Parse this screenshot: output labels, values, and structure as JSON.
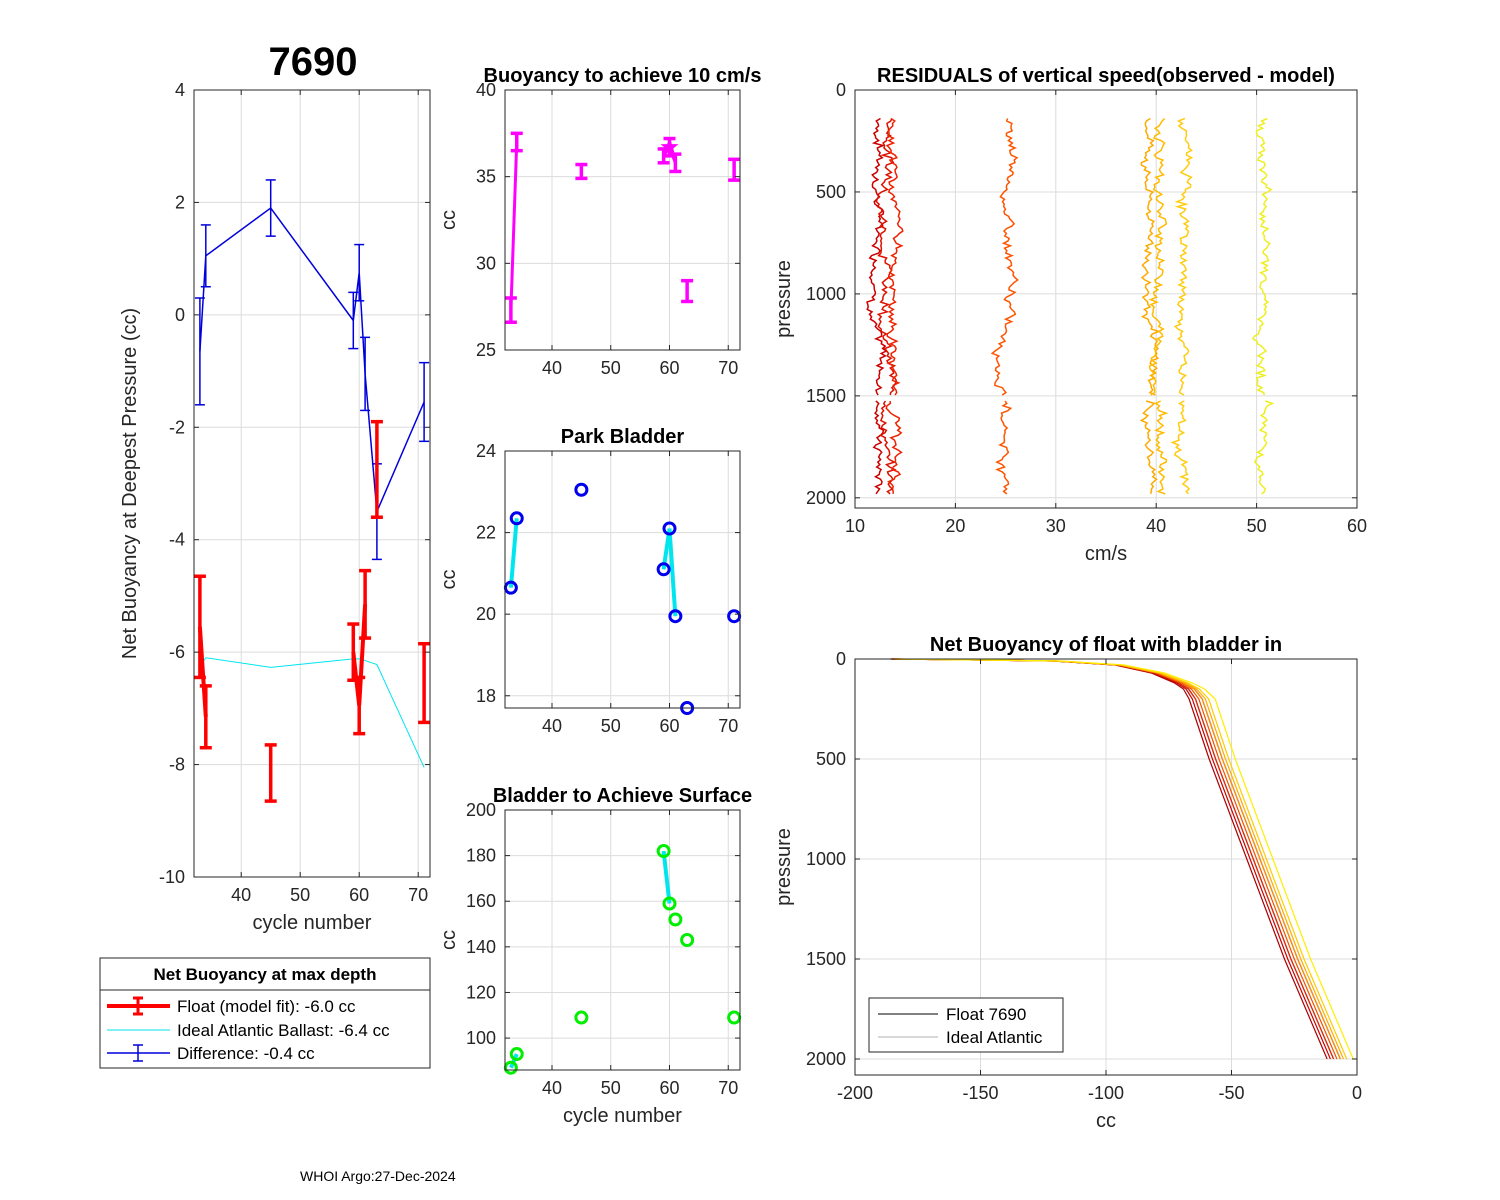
{
  "figure_title": "7690",
  "footer": "WHOI Argo:27-Dec-2024",
  "colors": {
    "float": "#ff0000",
    "ideal": "#00e5ee",
    "difference": "#0000dd",
    "magenta": "#ff00ff",
    "park_marker": "#0000ee",
    "surface_marker": "#00ee00",
    "connect": "#00e5ee"
  },
  "chart_data": [
    {
      "id": "net_buoyancy",
      "type": "line",
      "title": "",
      "xlabel": "cycle number",
      "ylabel": "Net Buoyancy at Deepest Pressure (cc)",
      "xlim": [
        32,
        72
      ],
      "ylim": [
        -10,
        4
      ],
      "xticks": [
        40,
        50,
        60,
        70
      ],
      "yticks": [
        -10,
        -8,
        -6,
        -4,
        -2,
        0,
        2,
        4
      ],
      "series": [
        {
          "name": "Float (model fit):  -6.0 cc",
          "kind": "errorbar-thick",
          "color": "#ff0000",
          "x": [
            33,
            34,
            45,
            59,
            60,
            61,
            63,
            71
          ],
          "y": [
            -5.55,
            -7.15,
            -8.15,
            -6.0,
            -6.95,
            -5.15,
            -2.75,
            -6.55
          ],
          "err": [
            0.9,
            0.55,
            0.5,
            0.5,
            0.5,
            0.6,
            0.85,
            0.7
          ],
          "connect_upto": 6
        },
        {
          "name": "Ideal Atlantic Ballast:  -6.4 cc",
          "kind": "line",
          "color": "#00e5ee",
          "x": [
            33,
            34,
            45,
            59,
            60,
            61,
            63,
            71
          ],
          "y": [
            -6.25,
            -6.1,
            -6.27,
            -6.12,
            -6.12,
            -6.15,
            -6.22,
            -8.05
          ]
        },
        {
          "name": "Difference:  -0.4 cc",
          "kind": "errorbar-thin",
          "color": "#0000dd",
          "x": [
            33,
            34,
            45,
            59,
            60,
            61,
            63,
            71
          ],
          "y": [
            -0.65,
            1.05,
            1.9,
            -0.1,
            0.75,
            -1.05,
            -3.5,
            -1.55
          ],
          "err": [
            0.95,
            0.55,
            0.5,
            0.5,
            0.5,
            0.65,
            0.85,
            0.7
          ]
        }
      ],
      "legend": {
        "title": "Net Buoyancy at max depth",
        "entries": [
          "Float (model fit):  -6.0 cc",
          "Ideal Atlantic Ballast:  -6.4 cc",
          "Difference:  -0.4 cc"
        ],
        "placement": "below"
      }
    },
    {
      "id": "buoyancy_10cms",
      "type": "scatter",
      "title": "Buoyancy to achieve 10 cm/s",
      "xlabel": "",
      "ylabel": "cc",
      "xlim": [
        32,
        72
      ],
      "ylim": [
        25,
        40
      ],
      "xticks": [
        40,
        50,
        60,
        70
      ],
      "yticks": [
        25,
        30,
        35,
        40
      ],
      "series": [
        {
          "name": "estimate",
          "kind": "errorbar-thick",
          "color": "#ff00ff",
          "x": [
            33,
            34,
            45,
            59,
            60,
            61,
            63,
            71
          ],
          "y": [
            27.3,
            37.0,
            35.3,
            36.2,
            36.7,
            35.8,
            28.4,
            35.4
          ],
          "err": [
            0.7,
            0.5,
            0.4,
            0.4,
            0.5,
            0.5,
            0.6,
            0.6
          ],
          "connect": [
            [
              0,
              1
            ],
            [
              3,
              4
            ],
            [
              4,
              5
            ]
          ]
        }
      ],
      "star": {
        "x": 60,
        "y": 36.7
      }
    },
    {
      "id": "park_bladder",
      "type": "scatter",
      "title": "Park Bladder",
      "xlabel": "",
      "ylabel": "cc",
      "xlim": [
        32,
        72
      ],
      "ylim": [
        17.7,
        24
      ],
      "xticks": [
        40,
        50,
        60,
        70
      ],
      "yticks": [
        18,
        20,
        22,
        24
      ],
      "series": [
        {
          "name": "park",
          "kind": "circles",
          "color": "#0000ee",
          "x": [
            33,
            34,
            45,
            59,
            60,
            61,
            63,
            71
          ],
          "y": [
            20.65,
            22.35,
            23.05,
            21.1,
            22.1,
            19.95,
            17.7,
            19.95
          ],
          "connect": [
            [
              0,
              1
            ],
            [
              3,
              4
            ],
            [
              4,
              5
            ]
          ]
        }
      ]
    },
    {
      "id": "surface_bladder",
      "type": "scatter",
      "title": "Bladder to Achieve Surface",
      "xlabel": "cycle number",
      "ylabel": "cc",
      "xlim": [
        32,
        72
      ],
      "ylim": [
        86,
        200
      ],
      "xticks": [
        40,
        50,
        60,
        70
      ],
      "yticks": [
        100,
        120,
        140,
        160,
        180,
        200
      ],
      "series": [
        {
          "name": "surface",
          "kind": "circles",
          "color": "#00ee00",
          "x": [
            33,
            34,
            45,
            59,
            60,
            61,
            63,
            71
          ],
          "y": [
            87,
            93,
            109,
            182,
            159,
            152,
            143,
            109
          ],
          "connect": [
            [
              0,
              1
            ],
            [
              3,
              4
            ]
          ]
        }
      ]
    },
    {
      "id": "residuals",
      "type": "line",
      "title": "RESIDUALS of vertical speed(observed - model)",
      "xlabel": "cm/s",
      "ylabel": "pressure",
      "xlim": [
        10,
        60
      ],
      "ylim": [
        0,
        2050
      ],
      "y_reversed": true,
      "xticks": [
        10,
        20,
        30,
        40,
        50,
        60
      ],
      "yticks": [
        0,
        500,
        1000,
        1500,
        2000
      ],
      "series": [
        {
          "center": 12.5,
          "color": "#cc0000"
        },
        {
          "center": 13.4,
          "color": "#dd1100"
        },
        {
          "center": 13.9,
          "color": "#ee2200"
        },
        {
          "center": 25.0,
          "color": "#ff5500"
        },
        {
          "center": 39.3,
          "color": "#ffaa00"
        },
        {
          "center": 40.4,
          "color": "#ffbb00"
        },
        {
          "center": 42.7,
          "color": "#ffcc11"
        },
        {
          "center": 50.8,
          "color": "#eeee22"
        }
      ]
    },
    {
      "id": "net_buoyancy_profile",
      "type": "line",
      "title": "Net Buoyancy of float with bladder in",
      "xlabel": "cc",
      "ylabel": "pressure",
      "xlim": [
        -200,
        0
      ],
      "ylim": [
        0,
        2080
      ],
      "y_reversed": true,
      "xticks": [
        -200,
        -150,
        -100,
        -50,
        0
      ],
      "yticks": [
        0,
        500,
        1000,
        1500,
        2000
      ],
      "profile_x": [
        -185,
        -150,
        -120,
        -95,
        -80,
        -70,
        -66,
        -63,
        -55,
        -40,
        -25,
        -8
      ],
      "profile_y": [
        0,
        5,
        10,
        30,
        70,
        120,
        150,
        200,
        500,
        1000,
        1500,
        2000
      ],
      "offsets": [
        -3,
        -2,
        -1,
        0,
        1,
        2,
        3,
        5
      ],
      "offset_colors": [
        "#aa0000",
        "#cc0000",
        "#dd2200",
        "#ee5500",
        "#ff8800",
        "#ffaa00",
        "#ffcc00",
        "#ffee00"
      ],
      "legend": {
        "entries": [
          "Float 7690",
          "Ideal Atlantic"
        ],
        "colors": [
          "#000000",
          "#b0b0b0"
        ],
        "placement": "bottom-left"
      }
    }
  ]
}
